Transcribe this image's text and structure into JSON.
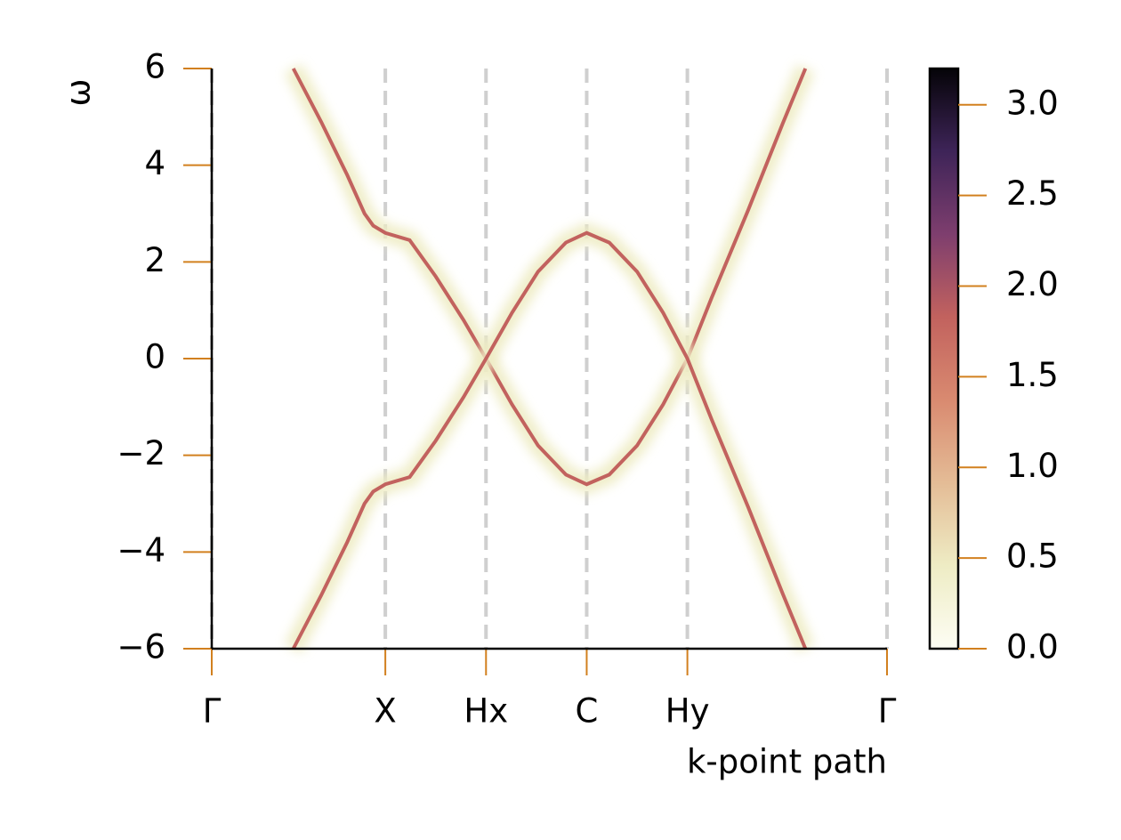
{
  "chart_data": {
    "type": "line",
    "xlabel": "k-point path",
    "ylabel": "ω",
    "xlim": [
      0,
      3.89
    ],
    "xticks": [
      {
        "value": 0,
        "label": "Γ"
      },
      {
        "value": 1,
        "label": "X"
      },
      {
        "value": 1.58,
        "label": "Hx"
      },
      {
        "value": 2.16,
        "label": "C"
      },
      {
        "value": 2.74,
        "label": "Hy"
      },
      {
        "value": 3.89,
        "label": "Γ"
      }
    ],
    "ylim": [
      -6,
      6
    ],
    "yticks": [
      {
        "value": -6,
        "label": "−6"
      },
      {
        "value": -4,
        "label": "−4"
      },
      {
        "value": -2,
        "label": "−2"
      },
      0,
      2,
      4,
      6
    ],
    "grid": "x",
    "tick_color": "#d2801f",
    "x": [
      0.47,
      0.63,
      0.78,
      0.88,
      0.93,
      1,
      1.14,
      1.29,
      1.45,
      1.58,
      1.73,
      1.88,
      2.04,
      2.16,
      2.29,
      2.45,
      2.6,
      2.74,
      2.88,
      3.09,
      3.29,
      3.42
    ],
    "series": [
      {
        "color": "#c2625e",
        "values": [
          6,
          4.9,
          3.8,
          3.0,
          2.75,
          2.6,
          2.45,
          1.7,
          0.8,
          0,
          -0.95,
          -1.8,
          -2.4,
          -2.6,
          -2.4,
          -1.8,
          -0.95,
          0,
          1.26,
          3.07,
          4.87,
          6
        ]
      },
      {
        "color": "#c2625e",
        "values": [
          -6,
          -4.9,
          -3.8,
          -3.0,
          -2.75,
          -2.6,
          -2.45,
          -1.7,
          -0.8,
          0,
          0.95,
          1.8,
          2.4,
          2.6,
          2.4,
          1.8,
          0.95,
          0,
          -1.26,
          -3.07,
          -4.87,
          -6
        ]
      }
    ],
    "colorbar": {
      "lim": [
        0,
        3.2
      ],
      "ticks": [
        {
          "value": 0,
          "label": "0.0"
        },
        {
          "value": 0.5,
          "label": "0.5"
        },
        {
          "value": 1,
          "label": "1.0"
        },
        {
          "value": 1.5,
          "label": "1.5"
        },
        {
          "value": 2,
          "label": "2.0"
        },
        {
          "value": 2.5,
          "label": "2.5"
        },
        {
          "value": 3,
          "label": "3.0"
        }
      ],
      "colormap": [
        "#fdfdf4",
        "#eeecc4",
        "#e4bc96",
        "#d98a70",
        "#c2625e",
        "#7e3e6e",
        "#3e2458",
        "#050408"
      ]
    }
  }
}
